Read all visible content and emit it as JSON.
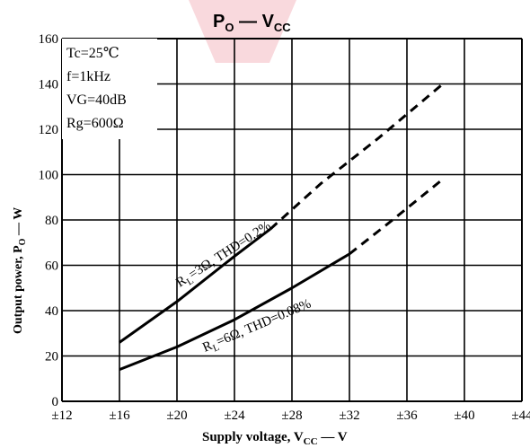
{
  "chart_data": {
    "type": "line",
    "title": "P",
    "title_sub": "O",
    "title_dash": " — V",
    "title_sub2": "CC",
    "xlabel": "Supply voltage, V",
    "xlabel_sub": "CC",
    "xlabel_tail": " — V",
    "ylabel": "Output power, P",
    "ylabel_sub": "O",
    "ylabel_tail": " — W",
    "x_tick_labels": [
      "±12",
      "±16",
      "±20",
      "±24",
      "±28",
      "±32",
      "±36",
      "±40",
      "±44"
    ],
    "x_ticks": [
      12,
      16,
      20,
      24,
      28,
      32,
      36,
      40,
      44
    ],
    "y_tick_labels": [
      "0",
      "20",
      "40",
      "60",
      "80",
      "100",
      "120",
      "140",
      "160"
    ],
    "y_ticks": [
      0,
      20,
      40,
      60,
      80,
      100,
      120,
      140,
      160
    ],
    "xlim": [
      12,
      44
    ],
    "ylim": [
      0,
      160
    ],
    "grid": true,
    "conditions": [
      "Tc=25℃",
      "f=1kHz",
      "VG=40dB",
      "Rg=600Ω"
    ],
    "series": [
      {
        "name": "RL=3Ω, THD=0.2%",
        "solid": {
          "x": [
            16,
            20,
            24,
            26.5
          ],
          "y": [
            26,
            44,
            64,
            76
          ]
        },
        "dashed": {
          "x": [
            26.5,
            30,
            34,
            38.5
          ],
          "y": [
            76,
            96,
            116,
            140
          ]
        }
      },
      {
        "name": "RL=6Ω, THD=0.08%",
        "solid": {
          "x": [
            16,
            20,
            24,
            28,
            32
          ],
          "y": [
            14,
            24,
            36,
            50,
            65
          ]
        },
        "dashed": {
          "x": [
            32,
            35,
            38.5
          ],
          "y": [
            65,
            80,
            98
          ]
        }
      }
    ],
    "labels": [
      {
        "text": "R",
        "sub": "L",
        "tail": "=3Ω, THD=0.2%"
      },
      {
        "text": "R",
        "sub": "L",
        "tail": "=6Ω, THD=0.08%"
      }
    ]
  },
  "colors": {
    "ink": "#000000",
    "background": "#ffffff",
    "watermark": "#f2b8c0"
  }
}
